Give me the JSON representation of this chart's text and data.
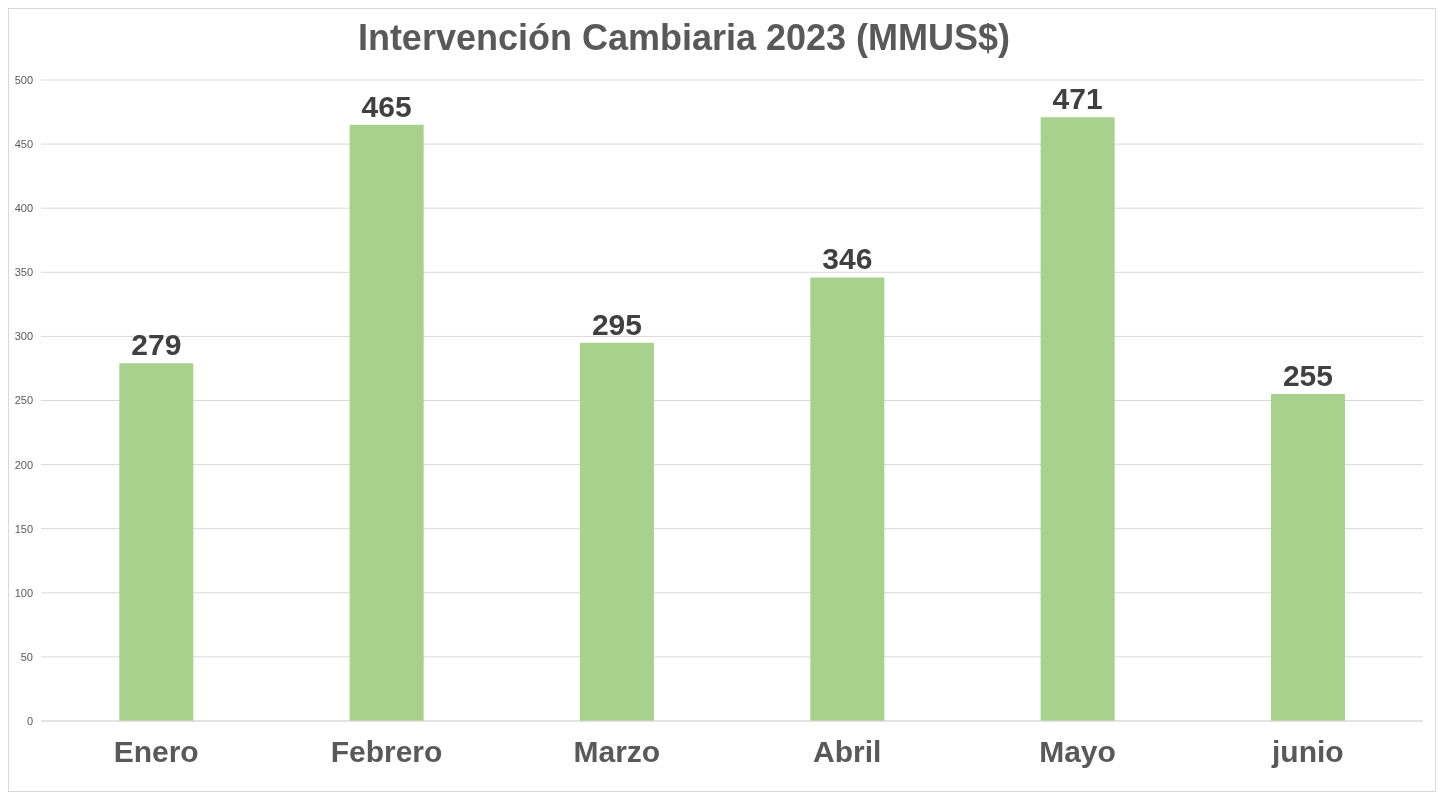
{
  "chart_data": {
    "type": "bar",
    "title": "Intervención Cambiaria 2023 (MMUS$)",
    "categories": [
      "Enero",
      "Febrero",
      "Marzo",
      "Abril",
      "Mayo",
      "junio"
    ],
    "values": [
      279,
      465,
      295,
      346,
      471,
      255
    ],
    "color": "#a9d18e",
    "ylim": [
      0,
      500
    ],
    "yticks": [
      0,
      50,
      100,
      150,
      200,
      250,
      300,
      350,
      400,
      450,
      500
    ],
    "grid": "y",
    "data_labels": true
  }
}
